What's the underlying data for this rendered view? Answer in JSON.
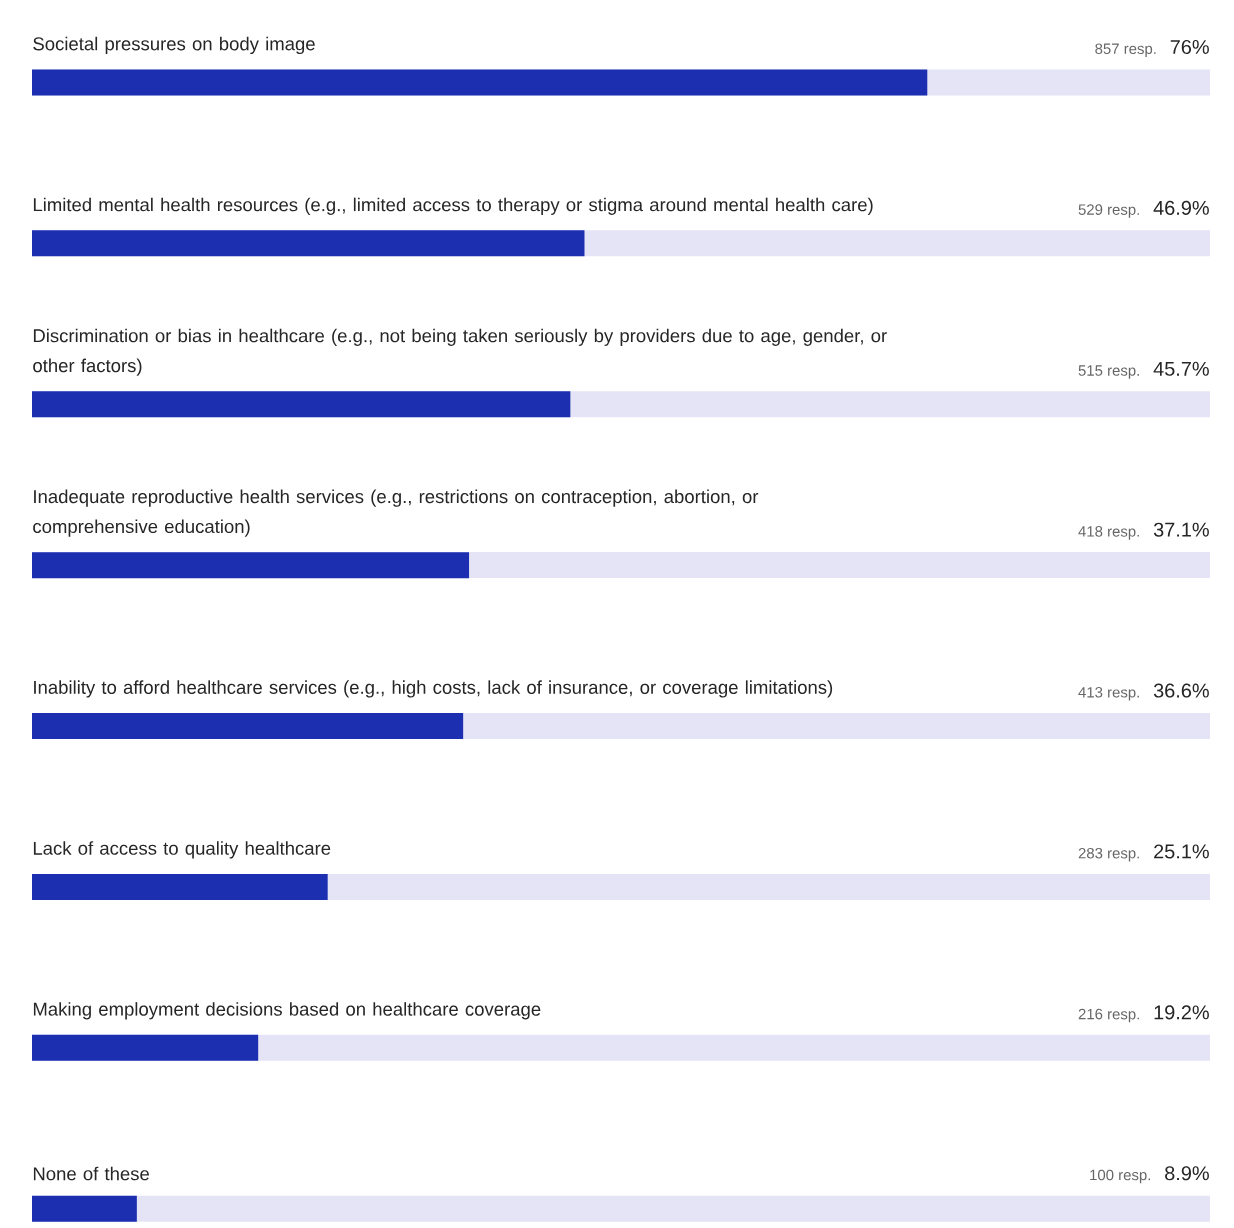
{
  "chart_data": {
    "type": "bar",
    "orientation": "horizontal",
    "categories": [
      "Societal pressures on body image",
      "Limited mental health resources (e.g., limited access to therapy or stigma around mental health care)",
      "Discrimination or bias in healthcare (e.g., not being taken seriously by providers due to age, gender, or other factors)",
      "Inadequate reproductive health services (e.g., restrictions on contraception, abortion, or comprehensive education)",
      "Inability to afford healthcare services (e.g., high costs, lack of insurance, or coverage limitations)",
      "Lack of access to quality healthcare",
      "Making employment decisions based on healthcare coverage",
      "None of these"
    ],
    "values": [
      76,
      46.9,
      45.7,
      37.1,
      36.6,
      25.1,
      19.2,
      8.9
    ],
    "value_labels": [
      "76%",
      "46.9%",
      "45.7%",
      "37.1%",
      "36.6%",
      "25.1%",
      "19.2%",
      "8.9%"
    ],
    "annotations": [
      "857 resp.",
      "529 resp.",
      "515 resp.",
      "418 resp.",
      "413 resp.",
      "283 resp.",
      "216 resp.",
      "100 resp."
    ],
    "color": "#1b2fb0",
    "xlim": [
      0,
      100
    ]
  }
}
